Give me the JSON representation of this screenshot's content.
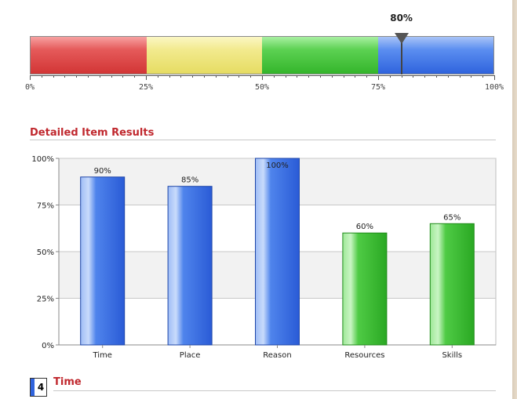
{
  "gauge": {
    "value": 80,
    "value_label": "80%",
    "bands": [
      {
        "from": 0,
        "to": 25,
        "color": "#d23535"
      },
      {
        "from": 25,
        "to": 50,
        "color": "#e6dc62"
      },
      {
        "from": 50,
        "to": 75,
        "color": "#34b52b"
      },
      {
        "from": 75,
        "to": 100,
        "color": "#2f63dd"
      }
    ],
    "tick_labels": [
      "0%",
      "25%",
      "50%",
      "75%",
      "100%"
    ]
  },
  "section_title": "Detailed Item Results",
  "chart_data": {
    "type": "bar",
    "title": "",
    "xlabel": "",
    "ylabel": "",
    "ylim": [
      0,
      100
    ],
    "y_ticks": [
      "0%",
      "25%",
      "50%",
      "75%",
      "100%"
    ],
    "categories": [
      "Time",
      "Place",
      "Reason",
      "Resources",
      "Skills"
    ],
    "values": [
      90,
      85,
      100,
      60,
      65
    ],
    "value_labels": [
      "90%",
      "85%",
      "100%",
      "60%",
      "65%"
    ],
    "bar_colors": [
      "#2f63dd",
      "#2f63dd",
      "#2f63dd",
      "#34b52b",
      "#34b52b"
    ],
    "grid": true,
    "legend": "none"
  },
  "footer_section": {
    "number": "4",
    "title": "Time"
  }
}
